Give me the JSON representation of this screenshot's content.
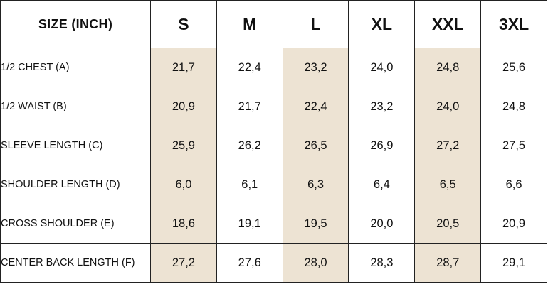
{
  "table": {
    "corner_label": "SIZE (INCH)",
    "sizes": [
      "S",
      "M",
      "L",
      "XL",
      "XXL",
      "3XL"
    ],
    "shaded_columns": [
      0,
      2,
      4
    ],
    "shade_color": "#ede3d3",
    "rows": [
      {
        "label": "1/2 CHEST (A)",
        "values": [
          "21,7",
          "22,4",
          "23,2",
          "24,0",
          "24,8",
          "25,6"
        ]
      },
      {
        "label": "1/2 WAIST (B)",
        "values": [
          "20,9",
          "21,7",
          "22,4",
          "23,2",
          "24,0",
          "24,8"
        ]
      },
      {
        "label": "SLEEVE LENGTH (C)",
        "values": [
          "25,9",
          "26,2",
          "26,5",
          "26,9",
          "27,2",
          "27,5"
        ]
      },
      {
        "label": "SHOULDER LENGTH (D)",
        "values": [
          "6,0",
          "6,1",
          "6,3",
          "6,4",
          "6,5",
          "6,6"
        ]
      },
      {
        "label": "CROSS SHOULDER (E)",
        "values": [
          "18,6",
          "19,1",
          "19,5",
          "20,0",
          "20,5",
          "20,9"
        ]
      },
      {
        "label": "CENTER BACK LENGTH (F)",
        "values": [
          "27,2",
          "27,6",
          "28,0",
          "28,3",
          "28,7",
          "29,1"
        ]
      }
    ]
  }
}
